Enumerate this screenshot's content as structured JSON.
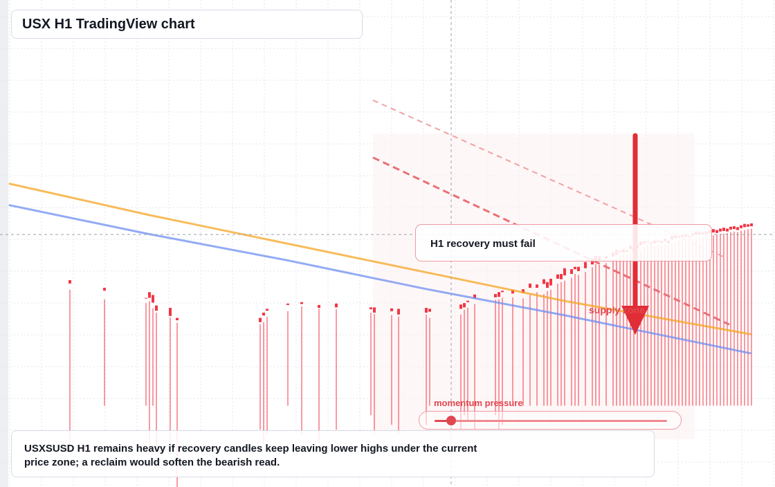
{
  "title": "USX H1 TradingView chart",
  "callout": {
    "text": "H1 recovery must fail"
  },
  "supply_zone": {
    "label": "supply zone"
  },
  "momentum": {
    "label": "momentum pressure",
    "level": 0.07
  },
  "note": {
    "text": "USXSUSD H1 remains heavy if recovery candles keep leaving lower highs under the current price zone; a reclaim would soften the bearish read."
  },
  "colors": {
    "up": "#089981",
    "down": "#f23645",
    "ma_fast": "#f5a623",
    "ma_slow": "#6f8ff0",
    "accent": "#e0474f"
  },
  "chart_data": {
    "type": "candlestick",
    "title": "USX H1 TradingView chart",
    "ylim": [
      0,
      100
    ],
    "crosshair": {
      "x": 152,
      "y": 66
    },
    "candles": [
      [
        17,
        41.3,
        5,
        39.3,
        40.6
      ],
      [
        27,
        39.7,
        15,
        37.3,
        39.1
      ],
      [
        39,
        37.6,
        15,
        36.5,
        37.5
      ],
      [
        40,
        38.8,
        5,
        36.9,
        37.6
      ],
      [
        41,
        38.2,
        15,
        35.4,
        36.6
      ],
      [
        42,
        36,
        5,
        34.5,
        34.9
      ],
      [
        46,
        35.5,
        5,
        33.5,
        33.8
      ],
      [
        48,
        33.4,
        -3,
        32.4,
        32.9
      ],
      [
        72,
        33.4,
        10,
        32.1,
        32.5
      ],
      [
        73,
        34.5,
        7,
        32.5,
        33.9
      ],
      [
        74,
        35.3,
        9,
        33.6,
        34.9
      ],
      [
        80,
        36.4,
        15,
        34.8,
        36.1
      ],
      [
        84,
        36.7,
        9,
        35.8,
        36.3
      ],
      [
        89,
        36.1,
        7,
        35.3,
        35.5
      ],
      [
        94,
        36.4,
        10,
        35.2,
        35.6
      ],
      [
        104,
        35.6,
        13,
        34.5,
        35.2
      ],
      [
        105,
        35.6,
        9,
        34.2,
        34.5
      ],
      [
        110,
        35.4,
        11,
        34,
        34.8
      ],
      [
        112,
        35.3,
        9,
        33.7,
        34.1
      ],
      [
        120,
        35.5,
        11,
        34.1,
        34.5
      ],
      [
        121,
        35.3,
        15,
        33.4,
        34.7
      ],
      [
        130,
        36.2,
        10,
        34.1,
        35.3
      ],
      [
        131,
        36.5,
        13,
        35.1,
        35.6
      ],
      [
        132,
        37,
        12,
        35.5,
        36.7
      ],
      [
        134,
        38.3,
        10,
        36.3,
        37.5
      ],
      [
        140,
        38.4,
        13,
        37.2,
        37.7
      ],
      [
        141,
        38.8,
        10,
        37.3,
        37.8
      ],
      [
        142,
        39.1,
        11,
        37.6,
        38.8
      ],
      [
        145,
        39.3,
        15,
        37.7,
        38.5
      ],
      [
        148,
        39.4,
        15,
        37.5,
        38.6
      ],
      [
        150,
        40.6,
        15,
        38.3,
        39.7
      ],
      [
        152,
        40.4,
        15,
        38.8,
        39.7
      ],
      [
        154,
        41.5,
        15,
        38.4,
        40.5
      ],
      [
        155,
        40.9,
        15,
        39,
        39.7
      ],
      [
        156,
        41.6,
        15,
        39.3,
        40.2
      ],
      [
        158,
        42.5,
        15,
        40.6,
        41.6
      ],
      [
        159,
        42.6,
        15,
        40.9,
        41.5
      ],
      [
        160,
        43.8,
        15,
        41.2,
        42.3
      ],
      [
        162,
        43.6,
        15,
        41.8,
        42.6
      ],
      [
        163,
        44.1,
        15,
        42.6,
        43.6
      ],
      [
        164,
        44.1,
        15,
        42.4,
        43.2
      ],
      [
        166,
        45.1,
        15,
        43,
        43.8
      ],
      [
        168,
        45.9,
        15,
        44,
        44.6
      ],
      [
        169,
        46.4,
        15,
        44.7,
        45.3
      ],
      [
        170,
        46.3,
        15,
        44.5,
        45.4
      ],
      [
        172,
        46.4,
        15,
        44.9,
        45.8
      ],
      [
        174,
        47.1,
        15,
        45.6,
        46.2
      ],
      [
        175,
        47.7,
        15,
        45.8,
        46.6
      ],
      [
        176,
        47.5,
        15,
        46.6,
        47.2
      ],
      [
        177,
        47.8,
        15,
        46.7,
        47.1
      ],
      [
        178,
        47.6,
        15,
        46.6,
        47.2
      ],
      [
        179,
        48.5,
        15,
        46.9,
        47.8
      ],
      [
        180,
        48.1,
        15,
        46.7,
        47.3
      ],
      [
        181,
        48.8,
        15,
        47.3,
        48
      ],
      [
        182,
        49.4,
        15,
        47.5,
        48.6
      ],
      [
        183,
        49.5,
        15,
        48.3,
        49
      ],
      [
        184,
        49.5,
        15,
        48.7,
        49.3
      ],
      [
        185,
        49.2,
        15,
        48.7,
        48.9
      ],
      [
        186,
        49.6,
        15,
        48.5,
        49
      ],
      [
        187,
        49.6,
        15,
        48.6,
        49.3
      ],
      [
        188,
        49.5,
        15,
        48.6,
        49.1
      ],
      [
        189,
        50,
        15,
        48.8,
        49.5
      ],
      [
        190,
        49.6,
        15,
        48.7,
        49
      ],
      [
        191,
        50.6,
        15,
        49.1,
        49.8
      ],
      [
        192,
        50.6,
        15,
        49.4,
        50.1
      ],
      [
        193,
        50.6,
        15,
        49.7,
        50.2
      ],
      [
        194,
        50.7,
        15,
        49.8,
        50.3
      ],
      [
        195,
        50.9,
        15,
        49.8,
        50.4
      ],
      [
        196,
        50.6,
        15,
        50,
        50.3
      ],
      [
        197,
        51.1,
        15,
        49.9,
        50.6
      ],
      [
        198,
        51.5,
        15,
        50.2,
        50.8
      ],
      [
        199,
        51.4,
        15,
        50.4,
        50.9
      ],
      [
        200,
        51.3,
        15,
        50.3,
        50.8
      ],
      [
        201,
        51.5,
        15,
        50.5,
        50.9
      ],
      [
        202,
        51.8,
        15,
        50.5,
        51.1
      ],
      [
        203,
        52,
        15,
        50.7,
        51.3
      ],
      [
        204,
        51.8,
        15,
        50.9,
        51.2
      ],
      [
        205,
        52.1,
        15,
        51,
        51.5
      ],
      [
        206,
        52.3,
        15,
        51.1,
        51.6
      ],
      [
        207,
        52.1,
        15,
        51.2,
        51.5
      ],
      [
        208,
        52.5,
        15,
        51.4,
        51.9
      ],
      [
        209,
        52.6,
        15,
        51.5,
        52
      ],
      [
        210,
        52.4,
        15,
        51.4,
        51.8
      ],
      [
        211,
        52.8,
        15,
        51.7,
        52.2
      ],
      [
        212,
        53.1,
        15,
        51.8,
        52.4
      ],
      [
        213,
        53,
        15,
        52,
        52.5
      ],
      [
        214,
        53.2,
        15,
        52.1,
        52.6
      ]
    ],
    "ma_fast": [
      [
        0,
        61.5
      ],
      [
        40,
        55
      ],
      [
        80,
        49
      ],
      [
        120,
        43
      ],
      [
        160,
        37
      ],
      [
        214,
        30
      ]
    ],
    "ma_slow": [
      [
        0,
        57
      ],
      [
        40,
        51
      ],
      [
        80,
        45.5
      ],
      [
        120,
        39.5
      ],
      [
        160,
        34
      ],
      [
        214,
        26
      ]
    ]
  }
}
